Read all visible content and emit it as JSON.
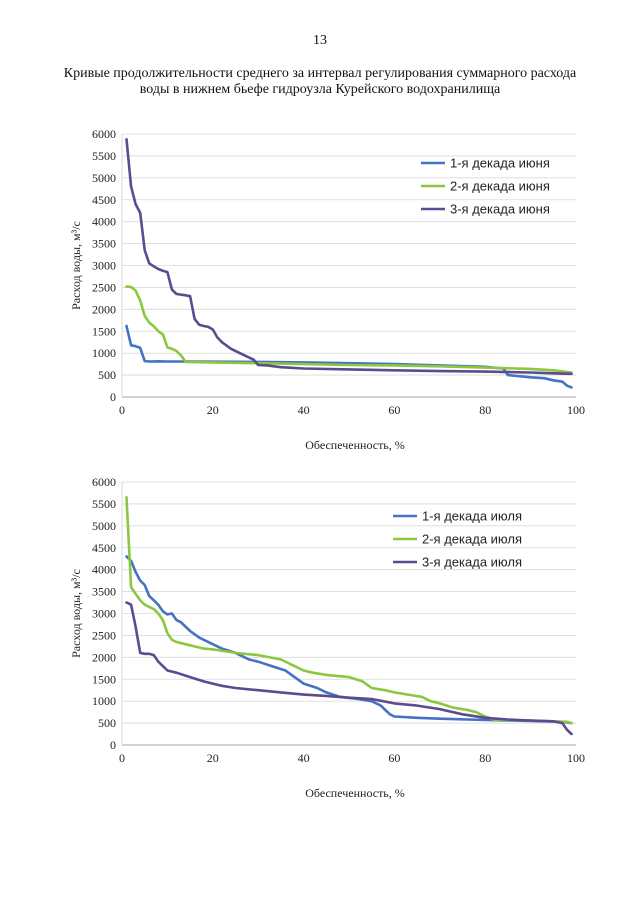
{
  "page": {
    "number": "13",
    "title_line1": "Кривые продолжительности среднего за интервал регулирования суммарного расхода",
    "title_line2": "воды в нижнем бьефе гидроузла Курейского водохранилища"
  },
  "chart_data": [
    {
      "type": "line",
      "title": "",
      "xlabel": "Обеспеченность, %",
      "ylabel": "Расход воды, м³/с",
      "xlim": [
        0,
        100
      ],
      "ylim": [
        0,
        6000
      ],
      "xticks": [
        0,
        20,
        40,
        60,
        80,
        100
      ],
      "yticks": [
        0,
        500,
        1000,
        1500,
        2000,
        2500,
        3000,
        3500,
        4000,
        4500,
        5000,
        5500,
        6000
      ],
      "grid": true,
      "legend_position": "top-right",
      "series": [
        {
          "name": "1-я декада июня",
          "color": "#4472C4",
          "points": [
            [
              1,
              1620
            ],
            [
              2,
              1180
            ],
            [
              3,
              1160
            ],
            [
              4,
              1120
            ],
            [
              5,
              820
            ],
            [
              6,
              810
            ],
            [
              8,
              815
            ],
            [
              10,
              810
            ],
            [
              15,
              810
            ],
            [
              20,
              805
            ],
            [
              30,
              800
            ],
            [
              40,
              790
            ],
            [
              50,
              770
            ],
            [
              60,
              750
            ],
            [
              70,
              720
            ],
            [
              80,
              690
            ],
            [
              84,
              650
            ],
            [
              85,
              500
            ],
            [
              87,
              480
            ],
            [
              90,
              450
            ],
            [
              93,
              430
            ],
            [
              95,
              380
            ],
            [
              97,
              350
            ],
            [
              98,
              260
            ],
            [
              99,
              220
            ]
          ]
        },
        {
          "name": "2-я декада июня",
          "color": "#8DC63F",
          "points": [
            [
              1,
              2520
            ],
            [
              2,
              2510
            ],
            [
              3,
              2430
            ],
            [
              4,
              2200
            ],
            [
              5,
              1850
            ],
            [
              6,
              1700
            ],
            [
              7,
              1610
            ],
            [
              8,
              1500
            ],
            [
              9,
              1430
            ],
            [
              10,
              1130
            ],
            [
              11,
              1100
            ],
            [
              12,
              1050
            ],
            [
              13,
              950
            ],
            [
              14,
              800
            ],
            [
              20,
              790
            ],
            [
              30,
              770
            ],
            [
              40,
              750
            ],
            [
              50,
              730
            ],
            [
              60,
              720
            ],
            [
              70,
              700
            ],
            [
              80,
              670
            ],
            [
              90,
              640
            ],
            [
              95,
              610
            ],
            [
              99,
              560
            ]
          ]
        },
        {
          "name": "3-я декада июня",
          "color": "#5C4B8F",
          "points": [
            [
              1,
              5880
            ],
            [
              2,
              4800
            ],
            [
              3,
              4400
            ],
            [
              4,
              4200
            ],
            [
              5,
              3350
            ],
            [
              6,
              3050
            ],
            [
              7,
              2980
            ],
            [
              8,
              2920
            ],
            [
              9,
              2880
            ],
            [
              10,
              2850
            ],
            [
              11,
              2450
            ],
            [
              12,
              2350
            ],
            [
              14,
              2320
            ],
            [
              15,
              2300
            ],
            [
              16,
              1780
            ],
            [
              17,
              1650
            ],
            [
              18,
              1620
            ],
            [
              19,
              1600
            ],
            [
              20,
              1540
            ],
            [
              21,
              1360
            ],
            [
              22,
              1250
            ],
            [
              24,
              1100
            ],
            [
              26,
              1000
            ],
            [
              28,
              900
            ],
            [
              29,
              850
            ],
            [
              30,
              730
            ],
            [
              32,
              720
            ],
            [
              35,
              680
            ],
            [
              40,
              650
            ],
            [
              50,
              630
            ],
            [
              60,
              610
            ],
            [
              70,
              590
            ],
            [
              80,
              580
            ],
            [
              90,
              560
            ],
            [
              95,
              540
            ],
            [
              99,
              530
            ]
          ]
        }
      ]
    },
    {
      "type": "line",
      "title": "",
      "xlabel": "Обеспеченность, %",
      "ylabel": "Расход воды, м³/с",
      "xlim": [
        0,
        100
      ],
      "ylim": [
        0,
        6000
      ],
      "xticks": [
        0,
        20,
        40,
        60,
        80,
        100
      ],
      "yticks": [
        0,
        500,
        1000,
        1500,
        2000,
        2500,
        3000,
        3500,
        4000,
        4500,
        5000,
        5500,
        6000
      ],
      "grid": true,
      "legend_position": "top-right",
      "series": [
        {
          "name": "1-я декада июля",
          "color": "#4472C4",
          "points": [
            [
              1,
              4300
            ],
            [
              2,
              4200
            ],
            [
              3,
              3950
            ],
            [
              4,
              3750
            ],
            [
              5,
              3650
            ],
            [
              6,
              3400
            ],
            [
              7,
              3300
            ],
            [
              8,
              3200
            ],
            [
              9,
              3050
            ],
            [
              10,
              2980
            ],
            [
              11,
              3000
            ],
            [
              12,
              2850
            ],
            [
              13,
              2800
            ],
            [
              15,
              2600
            ],
            [
              17,
              2450
            ],
            [
              20,
              2300
            ],
            [
              22,
              2200
            ],
            [
              25,
              2100
            ],
            [
              28,
              1950
            ],
            [
              30,
              1900
            ],
            [
              33,
              1800
            ],
            [
              36,
              1700
            ],
            [
              38,
              1550
            ],
            [
              40,
              1400
            ],
            [
              43,
              1300
            ],
            [
              45,
              1200
            ],
            [
              48,
              1100
            ],
            [
              52,
              1050
            ],
            [
              55,
              1000
            ],
            [
              57,
              900
            ],
            [
              58,
              800
            ],
            [
              59,
              700
            ],
            [
              60,
              650
            ],
            [
              65,
              620
            ],
            [
              70,
              600
            ],
            [
              80,
              570
            ],
            [
              90,
              550
            ],
            [
              97,
              530
            ],
            [
              99,
              500
            ]
          ]
        },
        {
          "name": "2-я декада июля",
          "color": "#8DC63F",
          "points": [
            [
              1,
              5650
            ],
            [
              2,
              3600
            ],
            [
              3,
              3450
            ],
            [
              4,
              3300
            ],
            [
              5,
              3200
            ],
            [
              6,
              3150
            ],
            [
              7,
              3100
            ],
            [
              8,
              3000
            ],
            [
              9,
              2850
            ],
            [
              10,
              2550
            ],
            [
              11,
              2400
            ],
            [
              12,
              2350
            ],
            [
              14,
              2300
            ],
            [
              16,
              2250
            ],
            [
              18,
              2200
            ],
            [
              20,
              2180
            ],
            [
              25,
              2100
            ],
            [
              30,
              2050
            ],
            [
              35,
              1950
            ],
            [
              38,
              1800
            ],
            [
              40,
              1700
            ],
            [
              42,
              1650
            ],
            [
              45,
              1600
            ],
            [
              50,
              1550
            ],
            [
              53,
              1450
            ],
            [
              55,
              1300
            ],
            [
              58,
              1250
            ],
            [
              60,
              1200
            ],
            [
              63,
              1150
            ],
            [
              66,
              1100
            ],
            [
              68,
              1000
            ],
            [
              70,
              950
            ],
            [
              73,
              850
            ],
            [
              76,
              800
            ],
            [
              78,
              750
            ],
            [
              80,
              650
            ],
            [
              82,
              580
            ],
            [
              85,
              570
            ],
            [
              90,
              560
            ],
            [
              95,
              540
            ],
            [
              98,
              530
            ],
            [
              99,
              500
            ]
          ]
        },
        {
          "name": "3-я декада июля",
          "color": "#5C4B8F",
          "points": [
            [
              1,
              3250
            ],
            [
              2,
              3200
            ],
            [
              3,
              2700
            ],
            [
              4,
              2100
            ],
            [
              5,
              2080
            ],
            [
              6,
              2080
            ],
            [
              7,
              2050
            ],
            [
              8,
              1900
            ],
            [
              9,
              1800
            ],
            [
              10,
              1700
            ],
            [
              12,
              1650
            ],
            [
              15,
              1550
            ],
            [
              18,
              1450
            ],
            [
              20,
              1400
            ],
            [
              22,
              1350
            ],
            [
              25,
              1300
            ],
            [
              30,
              1250
            ],
            [
              35,
              1200
            ],
            [
              40,
              1150
            ],
            [
              45,
              1120
            ],
            [
              50,
              1080
            ],
            [
              55,
              1050
            ],
            [
              60,
              950
            ],
            [
              65,
              900
            ],
            [
              70,
              820
            ],
            [
              75,
              700
            ],
            [
              80,
              620
            ],
            [
              85,
              580
            ],
            [
              90,
              560
            ],
            [
              95,
              540
            ],
            [
              97,
              500
            ],
            [
              98,
              350
            ],
            [
              99,
              250
            ]
          ]
        }
      ]
    }
  ]
}
